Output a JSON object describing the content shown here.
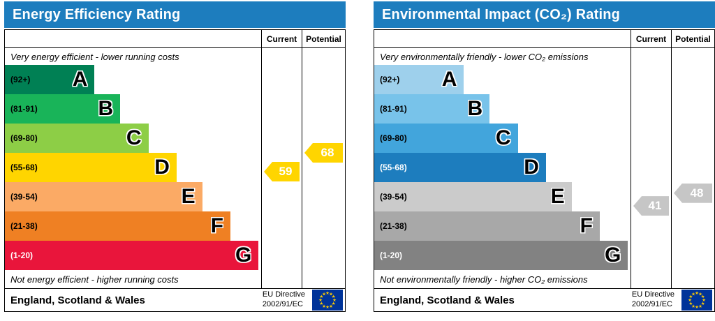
{
  "header_color": "#1d7dbe",
  "eu_flag": {
    "background": "#003399",
    "star": "#ffcc00"
  },
  "band_ranges": [
    [
      92,
      100
    ],
    [
      81,
      91
    ],
    [
      69,
      80
    ],
    [
      55,
      68
    ],
    [
      39,
      54
    ],
    [
      21,
      38
    ],
    [
      1,
      20
    ]
  ],
  "charts": [
    {
      "id": "energy-efficiency",
      "title": "Energy Efficiency Rating",
      "col_current": "Current",
      "col_potential": "Potential",
      "top_note": "Very energy efficient - lower running costs",
      "bottom_note": "Not energy efficient - higher running costs",
      "bands": [
        {
          "range": "(92+)",
          "letter": "A",
          "color": "#008054",
          "text_color": "#000000",
          "width_pct": 35
        },
        {
          "range": "(81-91)",
          "letter": "B",
          "color": "#19b459",
          "text_color": "#000000",
          "width_pct": 45
        },
        {
          "range": "(69-80)",
          "letter": "C",
          "color": "#8dce46",
          "text_color": "#000000",
          "width_pct": 56
        },
        {
          "range": "(55-68)",
          "letter": "D",
          "color": "#ffd500",
          "text_color": "#000000",
          "width_pct": 67
        },
        {
          "range": "(39-54)",
          "letter": "E",
          "color": "#fbaa65",
          "text_color": "#000000",
          "width_pct": 77
        },
        {
          "range": "(21-38)",
          "letter": "F",
          "color": "#ef8023",
          "text_color": "#000000",
          "width_pct": 88
        },
        {
          "range": "(1-20)",
          "letter": "G",
          "color": "#e9153b",
          "text_color": "#ffffff",
          "width_pct": 99
        }
      ],
      "current": {
        "value": 59,
        "arrow_color": "#ffd500"
      },
      "potential": {
        "value": 68,
        "arrow_color": "#ffd500"
      },
      "footer_region": "England, Scotland & Wales",
      "directive_line1": "EU Directive",
      "directive_line2": "2002/91/EC"
    },
    {
      "id": "environmental-impact",
      "title": "Environmental Impact (CO₂) Rating",
      "col_current": "Current",
      "col_potential": "Potential",
      "top_note": "Very environmentally friendly - lower CO₂ emissions",
      "bottom_note": "Not environmentally friendly - higher CO₂ emissions",
      "bands": [
        {
          "range": "(92+)",
          "letter": "A",
          "color": "#9ed0ec",
          "text_color": "#000000",
          "width_pct": 35
        },
        {
          "range": "(81-91)",
          "letter": "B",
          "color": "#78c3ea",
          "text_color": "#000000",
          "width_pct": 45
        },
        {
          "range": "(69-80)",
          "letter": "C",
          "color": "#42a5dc",
          "text_color": "#000000",
          "width_pct": 56
        },
        {
          "range": "(55-68)",
          "letter": "D",
          "color": "#1d7dbe",
          "text_color": "#ffffff",
          "width_pct": 67
        },
        {
          "range": "(39-54)",
          "letter": "E",
          "color": "#cbcbcb",
          "text_color": "#000000",
          "width_pct": 77
        },
        {
          "range": "(21-38)",
          "letter": "F",
          "color": "#a8a8a8",
          "text_color": "#000000",
          "width_pct": 88
        },
        {
          "range": "(1-20)",
          "letter": "G",
          "color": "#828282",
          "text_color": "#ffffff",
          "width_pct": 99
        }
      ],
      "current": {
        "value": 41,
        "arrow_color": "#c6c6c6"
      },
      "potential": {
        "value": 48,
        "arrow_color": "#c6c6c6"
      },
      "footer_region": "England, Scotland & Wales",
      "directive_line1": "EU Directive",
      "directive_line2": "2002/91/EC"
    }
  ],
  "chart_data": [
    {
      "type": "bar",
      "title": "Energy Efficiency Rating",
      "categories": [
        "A (92+)",
        "B (81-91)",
        "C (69-80)",
        "D (55-68)",
        "E (39-54)",
        "F (21-38)",
        "G (1-20)"
      ],
      "series": [
        {
          "name": "Current",
          "value": 59,
          "band": "D"
        },
        {
          "name": "Potential",
          "value": 68,
          "band": "D"
        }
      ],
      "ylim": [
        1,
        100
      ],
      "notes": [
        "Very energy efficient - lower running costs",
        "Not energy efficient - higher running costs"
      ],
      "footer": "England, Scotland & Wales — EU Directive 2002/91/EC"
    },
    {
      "type": "bar",
      "title": "Environmental Impact (CO₂) Rating",
      "categories": [
        "A (92+)",
        "B (81-91)",
        "C (69-80)",
        "D (55-68)",
        "E (39-54)",
        "F (21-38)",
        "G (1-20)"
      ],
      "series": [
        {
          "name": "Current",
          "value": 41,
          "band": "E"
        },
        {
          "name": "Potential",
          "value": 48,
          "band": "E"
        }
      ],
      "ylim": [
        1,
        100
      ],
      "notes": [
        "Very environmentally friendly - lower CO₂ emissions",
        "Not environmentally friendly - higher CO₂ emissions"
      ],
      "footer": "England, Scotland & Wales — EU Directive 2002/91/EC"
    }
  ]
}
